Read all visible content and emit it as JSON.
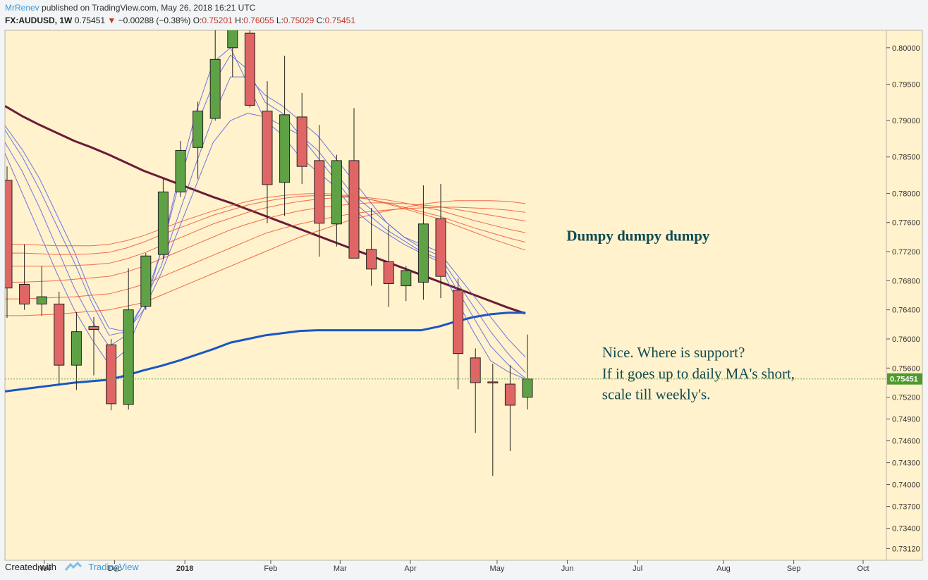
{
  "header": {
    "author": "MrRenev",
    "published": "published on TradingView.com, May 26, 2018 16:21 UTC",
    "symbol": "FX:AUDUSD, 1W",
    "last": "0.75451",
    "change": "−0.00288 (−0.38%)",
    "open_label": "O:",
    "open": "0.75201",
    "high_label": "H:",
    "high": "0.76055",
    "low_label": "L:",
    "low": "0.75029",
    "close_label": "C:",
    "close": "0.75451"
  },
  "footer": {
    "created_with": "Created with",
    "brand": "TradingView"
  },
  "colors": {
    "background": "#fff2cc",
    "up": "#5fa246",
    "down": "#e06666",
    "ma_long": "#6d1a36",
    "ma_blue": "#1a56c4",
    "fan_blue": "#5560e6",
    "fan_red": "#ee5533",
    "price_tag": "#4f9a2e",
    "price_line": "#69a84a"
  },
  "chart_data": {
    "type": "candlestick",
    "symbol": "FX:AUDUSD",
    "interval": "1W",
    "ylim": [
      0.7296,
      0.8024
    ],
    "price_ticks": [
      "0.80000",
      "0.79500",
      "0.79000",
      "0.78500",
      "0.78000",
      "0.77600",
      "0.77200",
      "0.76800",
      "0.76400",
      "0.76000",
      "0.75600",
      "0.75200",
      "0.74900",
      "0.74600",
      "0.74300",
      "0.74000",
      "0.73700",
      "0.73400",
      "0.73120"
    ],
    "time_ticks": [
      {
        "label": "Nov",
        "week": 2.15,
        "bold": false
      },
      {
        "label": "Dec",
        "week": 6.2,
        "bold": false
      },
      {
        "label": "2018",
        "week": 10.25,
        "bold": true
      },
      {
        "label": "Feb",
        "week": 15.2,
        "bold": false
      },
      {
        "label": "Mar",
        "week": 19.2,
        "bold": false
      },
      {
        "label": "Apr",
        "week": 23.25,
        "bold": false
      },
      {
        "label": "May",
        "week": 28.25,
        "bold": false
      },
      {
        "label": "Jun",
        "week": 32.3,
        "bold": false
      },
      {
        "label": "Jul",
        "week": 36.35,
        "bold": false
      },
      {
        "label": "Aug",
        "week": 41.3,
        "bold": false
      },
      {
        "label": "Sep",
        "week": 45.35,
        "bold": false
      },
      {
        "label": "Oct",
        "week": 49.35,
        "bold": false
      }
    ],
    "last_price": 0.75451,
    "last_price_label": "0.75451",
    "candles": [
      {
        "o": 0.7818,
        "h": 0.7837,
        "l": 0.7629,
        "c": 0.767
      },
      {
        "o": 0.7675,
        "h": 0.773,
        "l": 0.764,
        "c": 0.7648
      },
      {
        "o": 0.7648,
        "h": 0.77,
        "l": 0.7632,
        "c": 0.7658
      },
      {
        "o": 0.7648,
        "h": 0.7665,
        "l": 0.7537,
        "c": 0.7564
      },
      {
        "o": 0.7564,
        "h": 0.7637,
        "l": 0.753,
        "c": 0.761
      },
      {
        "o": 0.7617,
        "h": 0.763,
        "l": 0.755,
        "c": 0.7613
      },
      {
        "o": 0.7592,
        "h": 0.76,
        "l": 0.7502,
        "c": 0.7511
      },
      {
        "o": 0.751,
        "h": 0.7697,
        "l": 0.7503,
        "c": 0.764
      },
      {
        "o": 0.7645,
        "h": 0.7718,
        "l": 0.764,
        "c": 0.7714
      },
      {
        "o": 0.7716,
        "h": 0.782,
        "l": 0.771,
        "c": 0.7802
      },
      {
        "o": 0.7802,
        "h": 0.7872,
        "l": 0.7795,
        "c": 0.7859
      },
      {
        "o": 0.7863,
        "h": 0.7926,
        "l": 0.782,
        "c": 0.7913
      },
      {
        "o": 0.7903,
        "h": 0.803,
        "l": 0.79,
        "c": 0.7984
      },
      {
        "o": 0.8,
        "h": 0.8088,
        "l": 0.796,
        "c": 0.8058
      },
      {
        "o": 0.802,
        "h": 0.8136,
        "l": 0.7918,
        "c": 0.7921
      },
      {
        "o": 0.7913,
        "h": 0.7954,
        "l": 0.7759,
        "c": 0.7812
      },
      {
        "o": 0.7815,
        "h": 0.7989,
        "l": 0.7769,
        "c": 0.7908
      },
      {
        "o": 0.7905,
        "h": 0.7938,
        "l": 0.7813,
        "c": 0.7837
      },
      {
        "o": 0.7845,
        "h": 0.7894,
        "l": 0.7713,
        "c": 0.7759
      },
      {
        "o": 0.7758,
        "h": 0.7853,
        "l": 0.7727,
        "c": 0.7845
      },
      {
        "o": 0.7845,
        "h": 0.7917,
        "l": 0.7711,
        "c": 0.7711
      },
      {
        "o": 0.7723,
        "h": 0.778,
        "l": 0.7673,
        "c": 0.7696
      },
      {
        "o": 0.7706,
        "h": 0.7756,
        "l": 0.7644,
        "c": 0.7676
      },
      {
        "o": 0.7673,
        "h": 0.77,
        "l": 0.7652,
        "c": 0.7694
      },
      {
        "o": 0.7678,
        "h": 0.7811,
        "l": 0.7654,
        "c": 0.7758
      },
      {
        "o": 0.7765,
        "h": 0.7813,
        "l": 0.7656,
        "c": 0.7686
      },
      {
        "o": 0.7667,
        "h": 0.7683,
        "l": 0.7531,
        "c": 0.758
      },
      {
        "o": 0.7574,
        "h": 0.7587,
        "l": 0.7471,
        "c": 0.754
      },
      {
        "o": 0.7541,
        "h": 0.7566,
        "l": 0.7412,
        "c": 0.754
      },
      {
        "o": 0.7538,
        "h": 0.7564,
        "l": 0.7446,
        "c": 0.7509
      },
      {
        "o": 0.752,
        "h": 0.7606,
        "l": 0.7503,
        "c": 0.7545
      }
    ],
    "moving_averages": [
      {
        "color": "ma_long",
        "width": 3,
        "values": [
          0.792,
          0.7906,
          0.7894,
          0.7883,
          0.7872,
          0.7863,
          0.7853,
          0.7842,
          0.7831,
          0.7822,
          0.7813,
          0.7804,
          0.7795,
          0.7787,
          0.7778,
          0.7769,
          0.776,
          0.7751,
          0.7742,
          0.7733,
          0.7724,
          0.7715,
          0.7706,
          0.7697,
          0.7688,
          0.7679,
          0.767,
          0.7661,
          0.7652,
          0.7643,
          0.7635
        ]
      },
      {
        "color": "ma_blue",
        "width": 3,
        "values": [
          0.7528,
          0.7531,
          0.7534,
          0.7537,
          0.754,
          0.7542,
          0.7544,
          0.755,
          0.7557,
          0.7563,
          0.757,
          0.7578,
          0.7586,
          0.7595,
          0.76,
          0.7605,
          0.7608,
          0.7611,
          0.7612,
          0.7612,
          0.7612,
          0.7612,
          0.7612,
          0.7612,
          0.7612,
          0.7617,
          0.7624,
          0.763,
          0.7634,
          0.7636,
          0.7636
        ]
      },
      {
        "color": "fan_blue",
        "width": 1,
        "values": [
          0.7893,
          0.786,
          0.782,
          0.777,
          0.772,
          0.766,
          0.7615,
          0.761,
          0.764,
          0.769,
          0.775,
          0.781,
          0.787,
          0.79,
          0.791,
          0.7905,
          0.7893,
          0.788,
          0.786,
          0.783,
          0.78,
          0.778,
          0.776,
          0.774,
          0.773,
          0.772,
          0.769,
          0.766,
          0.763,
          0.76,
          0.7575
        ]
      },
      {
        "color": "fan_blue",
        "width": 1,
        "values": [
          0.7887,
          0.785,
          0.7805,
          0.7755,
          0.7705,
          0.765,
          0.7605,
          0.761,
          0.765,
          0.77,
          0.777,
          0.784,
          0.7905,
          0.796,
          0.796,
          0.7935,
          0.792,
          0.79,
          0.788,
          0.785,
          0.782,
          0.779,
          0.776,
          0.774,
          0.7725,
          0.7715,
          0.768,
          0.7645,
          0.761,
          0.758,
          0.7554
        ]
      },
      {
        "color": "fan_blue",
        "width": 1,
        "values": [
          0.787,
          0.783,
          0.778,
          0.7725,
          0.767,
          0.7625,
          0.759,
          0.7605,
          0.765,
          0.772,
          0.781,
          0.789,
          0.795,
          0.799,
          0.797,
          0.7925,
          0.791,
          0.788,
          0.785,
          0.782,
          0.779,
          0.777,
          0.775,
          0.7735,
          0.772,
          0.771,
          0.767,
          0.763,
          0.759,
          0.7565,
          0.7546
        ]
      },
      {
        "color": "fan_blue",
        "width": 1,
        "values": [
          0.7855,
          0.78,
          0.7745,
          0.769,
          0.764,
          0.76,
          0.7565,
          0.7585,
          0.764,
          0.772,
          0.782,
          0.791,
          0.798,
          0.8,
          0.795,
          0.79,
          0.788,
          0.785,
          0.783,
          0.781,
          0.778,
          0.776,
          0.7745,
          0.773,
          0.7718,
          0.7706,
          0.7655,
          0.761,
          0.757,
          0.7555,
          0.7545
        ]
      },
      {
        "color": "fan_red",
        "width": 1,
        "values": [
          0.7632,
          0.7632,
          0.7633,
          0.7634,
          0.7636,
          0.7638,
          0.764,
          0.7645,
          0.765,
          0.766,
          0.767,
          0.768,
          0.769,
          0.77,
          0.771,
          0.772,
          0.773,
          0.774,
          0.7748,
          0.7756,
          0.7764,
          0.777,
          0.7776,
          0.778,
          0.7785,
          0.7788,
          0.779,
          0.779,
          0.779,
          0.7789,
          0.7786
        ]
      },
      {
        "color": "fan_red",
        "width": 1,
        "values": [
          0.7655,
          0.7655,
          0.7656,
          0.7657,
          0.7658,
          0.766,
          0.7662,
          0.7668,
          0.7675,
          0.7685,
          0.7695,
          0.7705,
          0.7715,
          0.7725,
          0.7735,
          0.7745,
          0.7752,
          0.7758,
          0.7763,
          0.7768,
          0.7772,
          0.7775,
          0.7777,
          0.7779,
          0.778,
          0.7781,
          0.7781,
          0.778,
          0.7779,
          0.7777,
          0.7774
        ]
      },
      {
        "color": "fan_red",
        "width": 1,
        "values": [
          0.7678,
          0.7678,
          0.7679,
          0.768,
          0.7682,
          0.7684,
          0.7686,
          0.7692,
          0.77,
          0.771,
          0.772,
          0.773,
          0.774,
          0.775,
          0.7758,
          0.7765,
          0.7771,
          0.7776,
          0.778,
          0.7783,
          0.7785,
          0.7787,
          0.7787,
          0.7786,
          0.7784,
          0.7782,
          0.7778,
          0.7774,
          0.777,
          0.7766,
          0.7762
        ]
      },
      {
        "color": "fan_red",
        "width": 1,
        "values": [
          0.77,
          0.77,
          0.77,
          0.77,
          0.7701,
          0.7702,
          0.7704,
          0.771,
          0.7718,
          0.7728,
          0.7738,
          0.7748,
          0.7758,
          0.7766,
          0.7774,
          0.778,
          0.7785,
          0.7789,
          0.7792,
          0.7794,
          0.7795,
          0.7794,
          0.7791,
          0.7787,
          0.7782,
          0.7777,
          0.777,
          0.7763,
          0.7757,
          0.7751,
          0.7746
        ]
      },
      {
        "color": "fan_red",
        "width": 1,
        "values": [
          0.7718,
          0.7718,
          0.7717,
          0.7716,
          0.7716,
          0.7717,
          0.7719,
          0.7725,
          0.7733,
          0.7743,
          0.7752,
          0.7761,
          0.777,
          0.7777,
          0.7784,
          0.7789,
          0.7793,
          0.7796,
          0.7797,
          0.7797,
          0.7795,
          0.7792,
          0.7787,
          0.7781,
          0.7775,
          0.7769,
          0.7761,
          0.7753,
          0.7746,
          0.7739,
          0.7733
        ]
      },
      {
        "color": "fan_red",
        "width": 1,
        "values": [
          0.773,
          0.773,
          0.7729,
          0.7728,
          0.7728,
          0.7728,
          0.773,
          0.7735,
          0.7742,
          0.7751,
          0.776,
          0.7768,
          0.7776,
          0.7783,
          0.7789,
          0.7794,
          0.7797,
          0.7799,
          0.78,
          0.7799,
          0.7796,
          0.7792,
          0.7786,
          0.7779,
          0.7772,
          0.7765,
          0.7756,
          0.7747,
          0.7738,
          0.773,
          0.7722
        ]
      }
    ],
    "annotations": [
      {
        "text": "Dumpy dumpy dumpy",
        "price": 0.7735,
        "week": 32.25
      },
      {
        "text": "Nice. Where is support?",
        "price": 0.7575,
        "week": 34.3
      },
      {
        "text": "If it goes up to daily MA's short,",
        "price": 0.7546,
        "week": 34.3
      },
      {
        "text": "scale till weekly's.",
        "price": 0.7517,
        "week": 34.3
      }
    ]
  }
}
